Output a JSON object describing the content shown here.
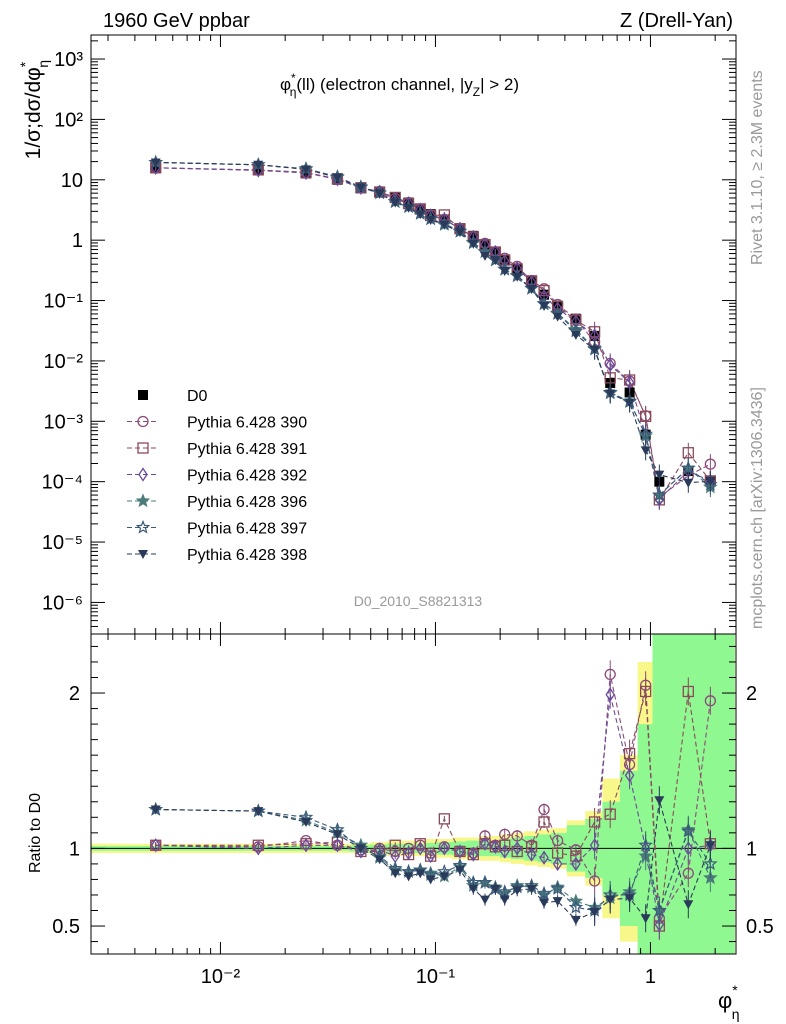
{
  "header": {
    "left": "1960 GeV ppbar",
    "right": "Z (Drell-Yan)"
  },
  "side_labels": {
    "rivet": "Rivet 3.1.10, ≥ 2.3M events",
    "mcplots": "mcplots.cern.ch [arXiv:1306.3436]"
  },
  "chart_data": {
    "type": "scatter",
    "title": "φ*η(ll) (electron channel, |yZ| > 2)",
    "title_parts": {
      "phi": "φ",
      "star": "*",
      "eta": "η",
      "mid": "(ll) (electron channel, |y",
      "sub": "Z",
      "end": "| > 2)"
    },
    "analysis_id": "D0_2010_S8821313",
    "xlabel": "φ*η",
    "ylabel": "1/σ;dσ/dφ*η",
    "ratio_ylabel": "Ratio to D0",
    "x_scale": "log",
    "xlim": [
      0.0025,
      2.5
    ],
    "y_scale": "log",
    "ylim": [
      3e-07,
      2500
    ],
    "ratio_ylim": [
      0.32,
      2.38
    ],
    "x_tick_labels": [
      "10⁻²",
      "10⁻¹",
      "1"
    ],
    "x_tick_values": [
      0.01,
      0.1,
      1
    ],
    "y_tick_values": [
      1e-06,
      1e-05,
      0.0001,
      0.001,
      0.01,
      0.1,
      1,
      10,
      100,
      1000
    ],
    "y_tick_labels": [
      "10⁻⁶",
      "10⁻⁵",
      "10⁻⁴",
      "10⁻³",
      "10⁻²",
      "10⁻¹",
      "1",
      "10",
      "10²",
      "10³"
    ],
    "ratio_tick_values": [
      0.5,
      1,
      2
    ],
    "ratio_tick_labels": [
      "0.5",
      "1",
      "2"
    ],
    "legend_position": "lower-left",
    "x": [
      0.005,
      0.015,
      0.025,
      0.035,
      0.045,
      0.055,
      0.065,
      0.075,
      0.085,
      0.095,
      0.11,
      0.13,
      0.15,
      0.17,
      0.19,
      0.21,
      0.24,
      0.28,
      0.32,
      0.37,
      0.45,
      0.55,
      0.65,
      0.8,
      0.95,
      1.1,
      1.5,
      1.9
    ],
    "series": [
      {
        "name": "D0",
        "marker": "square-filled",
        "color": "#000000",
        "values": [
          15.5,
          14.3,
          12.7,
          10.0,
          7.5,
          6.4,
          5.0,
          4.2,
          3.2,
          2.7,
          2.2,
          1.58,
          1.18,
          0.82,
          0.63,
          0.46,
          0.34,
          0.21,
          0.125,
          0.082,
          0.05,
          0.026,
          0.0043,
          0.003,
          0.0006,
          0.0001,
          0.00015,
          0.0001
        ]
      },
      {
        "name": "Pythia 6.428 390",
        "marker": "circle-open",
        "color": "#8a4a7a",
        "ratio": [
          1.02,
          1.01,
          1.05,
          1.02,
          0.99,
          1.0,
          0.98,
          1.0,
          1.02,
          0.97,
          1.01,
          0.98,
          0.97,
          1.08,
          1.02,
          1.09,
          1.08,
          1.02,
          1.25,
          1.05,
          0.99,
          0.79,
          2.12,
          1.54,
          2.05,
          0.55,
          0.84,
          1.95
        ]
      },
      {
        "name": "Pythia 6.428 391",
        "marker": "square-open",
        "color": "#8a4a5a",
        "ratio": [
          1.02,
          1.02,
          1.03,
          1.04,
          0.98,
          0.98,
          1.02,
          0.96,
          1.03,
          0.95,
          1.19,
          0.98,
          0.96,
          1.03,
          1.01,
          1.02,
          0.98,
          1.01,
          1.17,
          0.97,
          0.95,
          1.17,
          1.22,
          1.61,
          2.01,
          0.5,
          2.01,
          1.03
        ]
      },
      {
        "name": "Pythia 6.428 392",
        "marker": "diamond-open",
        "color": "#6a4a9a",
        "ratio": [
          1.02,
          1.0,
          1.02,
          1.02,
          0.98,
          0.99,
          0.95,
          0.97,
          1.0,
          0.95,
          1.0,
          0.98,
          0.96,
          1.03,
          1.01,
          0.98,
          1.0,
          0.96,
          0.94,
          0.9,
          0.9,
          1.02,
          1.99,
          1.47,
          1.0,
          0.51,
          1.0,
          1.02
        ]
      },
      {
        "name": "Pythia 6.428 396",
        "marker": "star-filled",
        "color": "#4a7a7a",
        "ratio": [
          1.25,
          1.24,
          1.18,
          1.1,
          1.02,
          0.94,
          0.86,
          0.85,
          0.86,
          0.84,
          0.82,
          0.88,
          0.76,
          0.78,
          0.75,
          0.71,
          0.76,
          0.75,
          0.7,
          0.75,
          0.66,
          0.62,
          0.68,
          0.72,
          0.95,
          0.6,
          1.12,
          0.81
        ]
      },
      {
        "name": "Pythia 6.428 397",
        "marker": "star-open",
        "color": "#3a5a7a",
        "ratio": [
          1.25,
          1.24,
          1.2,
          1.12,
          1.0,
          0.95,
          0.87,
          0.85,
          0.86,
          0.83,
          0.85,
          0.89,
          0.78,
          0.78,
          0.74,
          0.72,
          0.75,
          0.76,
          0.71,
          0.74,
          0.62,
          0.6,
          0.7,
          0.7,
          1.02,
          0.6,
          1.11,
          0.9
        ]
      },
      {
        "name": "Pythia 6.428 398",
        "marker": "triangle-down-filled",
        "color": "#2a3a5a",
        "ratio": [
          1.25,
          1.24,
          1.17,
          1.09,
          1.0,
          0.93,
          0.84,
          0.82,
          0.84,
          0.8,
          0.82,
          0.86,
          0.74,
          0.67,
          0.74,
          0.67,
          0.73,
          0.74,
          0.65,
          0.66,
          0.54,
          0.59,
          0.67,
          0.68,
          0.55,
          1.31,
          0.64,
          1.02
        ]
      }
    ],
    "ratio_bands": {
      "yellow_half_width": [
        0.03,
        0.03,
        0.03,
        0.03,
        0.03,
        0.04,
        0.05,
        0.05,
        0.05,
        0.06,
        0.06,
        0.07,
        0.07,
        0.08,
        0.08,
        0.09,
        0.1,
        0.11,
        0.12,
        0.13,
        0.18,
        0.24,
        0.45,
        0.6,
        1.2,
        2.0,
        2.0,
        2.0
      ],
      "green_half_width": [
        0.015,
        0.015,
        0.015,
        0.015,
        0.02,
        0.025,
        0.03,
        0.03,
        0.03,
        0.035,
        0.04,
        0.045,
        0.05,
        0.05,
        0.05,
        0.06,
        0.07,
        0.08,
        0.09,
        0.1,
        0.15,
        0.19,
        0.3,
        0.5,
        0.8,
        2.0,
        2.0,
        2.0
      ],
      "yellow_color": "#f8f88a",
      "green_color": "#90f890"
    }
  }
}
